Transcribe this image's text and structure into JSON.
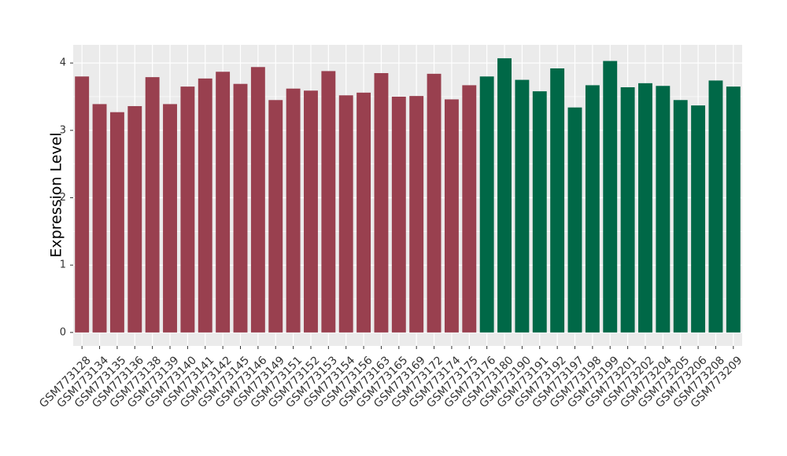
{
  "chart_data": {
    "type": "bar",
    "y_label": "Expression Level",
    "categories": [
      "GSM773128",
      "GSM773134",
      "GSM773135",
      "GSM773136",
      "GSM773138",
      "GSM773139",
      "GSM773140",
      "GSM773141",
      "GSM773142",
      "GSM773145",
      "GSM773146",
      "GSM773149",
      "GSM773151",
      "GSM773152",
      "GSM773153",
      "GSM773154",
      "GSM773156",
      "GSM773163",
      "GSM773165",
      "GSM773169",
      "GSM773172",
      "GSM773174",
      "GSM773175",
      "GSM773176",
      "GSM773180",
      "GSM773190",
      "GSM773191",
      "GSM773192",
      "GSM773197",
      "GSM773198",
      "GSM773199",
      "GSM773201",
      "GSM773202",
      "GSM773204",
      "GSM773205",
      "GSM773206",
      "GSM773208",
      "GSM773209"
    ],
    "values": [
      3.8,
      3.39,
      3.27,
      3.36,
      3.79,
      3.39,
      3.65,
      3.77,
      3.87,
      3.69,
      3.94,
      3.45,
      3.62,
      3.59,
      3.88,
      3.52,
      3.56,
      3.85,
      3.5,
      3.51,
      3.84,
      3.46,
      3.67,
      3.8,
      4.07,
      3.75,
      3.58,
      3.92,
      3.34,
      3.67,
      4.03,
      3.64,
      3.7,
      3.66,
      3.45,
      3.37,
      3.74,
      3.65
    ],
    "colors": [
      "#99404f",
      "#99404f",
      "#99404f",
      "#99404f",
      "#99404f",
      "#99404f",
      "#99404f",
      "#99404f",
      "#99404f",
      "#99404f",
      "#99404f",
      "#99404f",
      "#99404f",
      "#99404f",
      "#99404f",
      "#99404f",
      "#99404f",
      "#99404f",
      "#99404f",
      "#99404f",
      "#99404f",
      "#99404f",
      "#99404f",
      "#006847",
      "#006847",
      "#006847",
      "#006847",
      "#006847",
      "#006847",
      "#006847",
      "#006847",
      "#006847",
      "#006847",
      "#006847",
      "#006847",
      "#006847",
      "#006847",
      "#006847"
    ],
    "ylim": [
      -0.2,
      4.27
    ],
    "yticks": [
      0,
      1,
      2,
      3,
      4
    ],
    "grid": true
  }
}
